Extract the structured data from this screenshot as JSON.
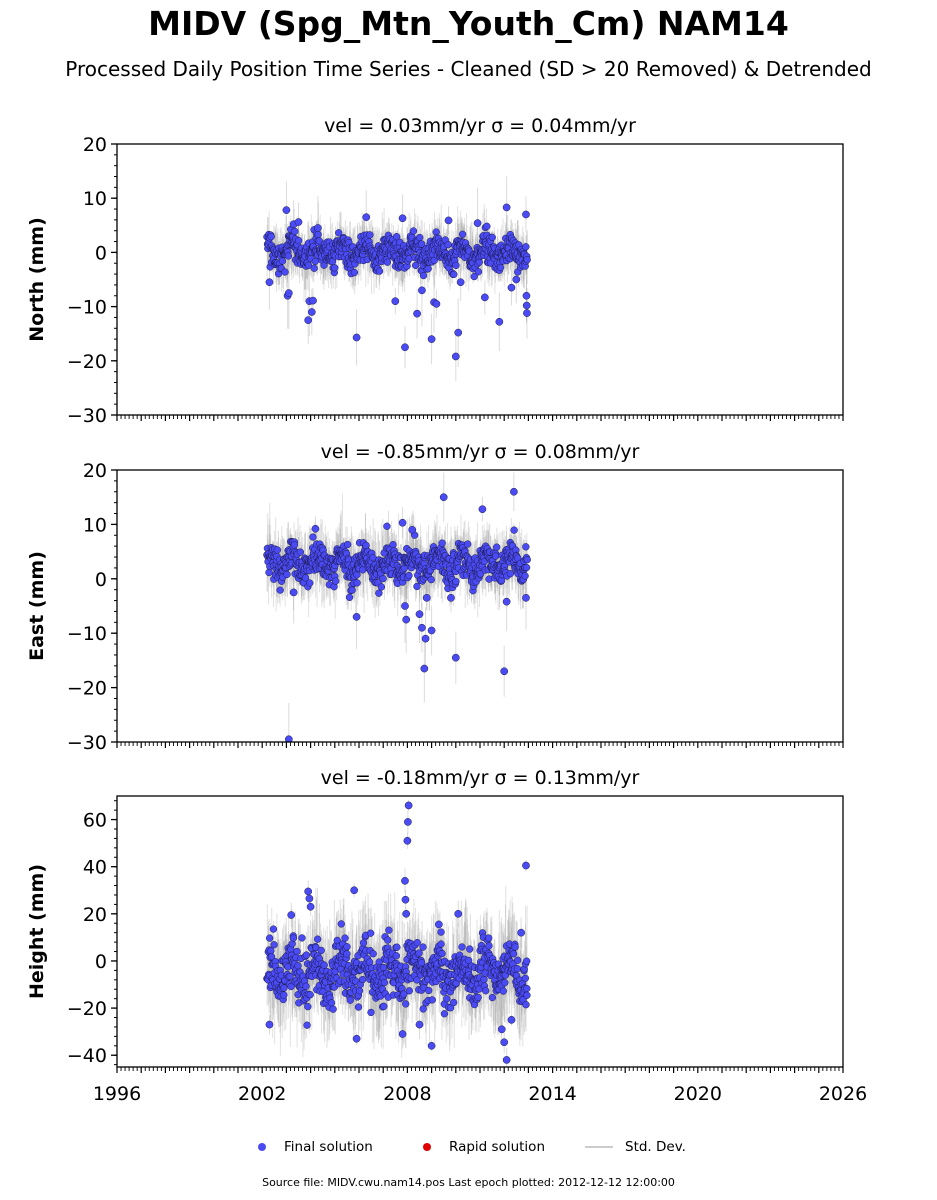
{
  "title": "MIDV (Spg_Mtn_Youth_Cm) NAM14",
  "subtitle": "Processed Daily Position Time Series - Cleaned (SD > 20 Removed) & Detrended",
  "source": "Source file: MIDV.cwu.nam14.pos  Last epoch plotted: 2012-12-12 12:00:00",
  "colors": {
    "final": "#4b4bf5",
    "rapid": "#e00000",
    "stddev": "#c8c8c8",
    "edge": "#1a1a4a"
  },
  "legend": [
    {
      "label": "Final solution",
      "marker": "dot",
      "color": "#4b4bf5"
    },
    {
      "label": "Rapid solution",
      "marker": "dot",
      "color": "#e00000"
    },
    {
      "label": "Std. Dev.",
      "marker": "line",
      "color": "#cccccc"
    }
  ],
  "chart_data": [
    {
      "type": "scatter",
      "title": "vel = 0.03mm/yr   σ = 0.04mm/yr",
      "ylabel": "North (mm)",
      "xlim": [
        1996,
        2026
      ],
      "ylim": [
        -30,
        20
      ],
      "yticks": [
        20,
        10,
        0,
        -10,
        -20,
        -30
      ],
      "xticks": [],
      "series": [
        {
          "name": "Final solution",
          "x_range": [
            2002.2,
            2012.95
          ],
          "core_band": [
            -3.5,
            3.5
          ],
          "outliers": [
            [
              2002.3,
              -5.5
            ],
            [
              2003.0,
              7.8
            ],
            [
              2003.3,
              5.2
            ],
            [
              2003.05,
              -8.0
            ],
            [
              2003.1,
              -7.5
            ],
            [
              2003.5,
              5.6
            ],
            [
              2003.9,
              -12.5
            ],
            [
              2003.95,
              -9.0
            ],
            [
              2004.05,
              -11.0
            ],
            [
              2004.1,
              -8.9
            ],
            [
              2004.3,
              4.5
            ],
            [
              2005.9,
              -15.7
            ],
            [
              2006.3,
              6.5
            ],
            [
              2007.5,
              -9.0
            ],
            [
              2007.8,
              6.3
            ],
            [
              2007.9,
              -17.5
            ],
            [
              2008.4,
              -11.3
            ],
            [
              2008.6,
              -7.0
            ],
            [
              2009.0,
              -16.0
            ],
            [
              2009.1,
              -9.2
            ],
            [
              2009.2,
              -9.5
            ],
            [
              2009.7,
              5.9
            ],
            [
              2010.0,
              -19.2
            ],
            [
              2010.1,
              -14.8
            ],
            [
              2010.2,
              -5.5
            ],
            [
              2010.9,
              5.4
            ],
            [
              2011.2,
              -8.3
            ],
            [
              2011.8,
              -12.8
            ],
            [
              2012.1,
              8.3
            ],
            [
              2012.3,
              -6.5
            ],
            [
              2012.5,
              -5.0
            ],
            [
              2012.9,
              7.0
            ],
            [
              2012.92,
              -8.0
            ],
            [
              2012.93,
              -9.8
            ],
            [
              2012.94,
              -11.2
            ]
          ]
        }
      ]
    },
    {
      "type": "scatter",
      "title": "vel = -0.85mm/yr   σ = 0.08mm/yr",
      "ylabel": "East (mm)",
      "xlim": [
        1996,
        2026
      ],
      "ylim": [
        -30,
        20
      ],
      "yticks": [
        20,
        10,
        0,
        -10,
        -20,
        -30
      ],
      "xticks": [],
      "series": [
        {
          "name": "Final solution",
          "x_range": [
            2002.2,
            2012.95
          ],
          "core_band": [
            -1.5,
            7.0
          ],
          "outliers": [
            [
              2003.1,
              -29.5
            ],
            [
              2003.3,
              -2.5
            ],
            [
              2004.2,
              9.2
            ],
            [
              2005.9,
              -7.0
            ],
            [
              2007.9,
              -5.0
            ],
            [
              2007.95,
              -7.5
            ],
            [
              2008.5,
              -6.5
            ],
            [
              2008.6,
              -9.0
            ],
            [
              2008.7,
              -16.5
            ],
            [
              2008.75,
              -11.0
            ],
            [
              2008.8,
              -3.5
            ],
            [
              2009.0,
              -9.5
            ],
            [
              2009.5,
              15.0
            ],
            [
              2009.8,
              -3.5
            ],
            [
              2010.0,
              -14.5
            ],
            [
              2011.1,
              12.8
            ],
            [
              2012.0,
              -17.0
            ],
            [
              2012.1,
              -4.2
            ],
            [
              2012.4,
              16.0
            ],
            [
              2012.9,
              -3.5
            ],
            [
              2007.8,
              10.3
            ],
            [
              2008.2,
              9.0
            ]
          ]
        }
      ]
    },
    {
      "type": "scatter",
      "title": "vel = -0.18mm/yr   σ = 0.13mm/yr",
      "ylabel": "Height (mm)",
      "xlabel": "",
      "xlim": [
        1996,
        2026
      ],
      "ylim": [
        -45,
        70
      ],
      "yticks": [
        60,
        40,
        20,
        0,
        -20,
        -40
      ],
      "xticks": [
        1996,
        2002,
        2008,
        2014,
        2020,
        2026
      ],
      "series": [
        {
          "name": "Final solution",
          "x_range": [
            2002.2,
            2012.95
          ],
          "core_band": [
            -20,
            10
          ],
          "outliers": [
            [
              2002.3,
              -27.0
            ],
            [
              2003.2,
              19.5
            ],
            [
              2003.9,
              29.5
            ],
            [
              2003.95,
              26.5
            ],
            [
              2004.0,
              23.0
            ],
            [
              2005.8,
              30.0
            ],
            [
              2005.9,
              -33.0
            ],
            [
              2007.8,
              -31.0
            ],
            [
              2007.9,
              34.0
            ],
            [
              2007.92,
              26.0
            ],
            [
              2007.95,
              20.0
            ],
            [
              2008.0,
              51.0
            ],
            [
              2008.02,
              59.0
            ],
            [
              2008.05,
              66.0
            ],
            [
              2008.5,
              -27.0
            ],
            [
              2009.0,
              -36.0
            ],
            [
              2009.3,
              15.5
            ],
            [
              2010.1,
              20.0
            ],
            [
              2011.9,
              -29.0
            ],
            [
              2012.0,
              -34.5
            ],
            [
              2012.1,
              -42.0
            ],
            [
              2012.3,
              -25.0
            ],
            [
              2012.9,
              40.5
            ],
            [
              2012.7,
              12.0
            ]
          ]
        }
      ]
    }
  ]
}
